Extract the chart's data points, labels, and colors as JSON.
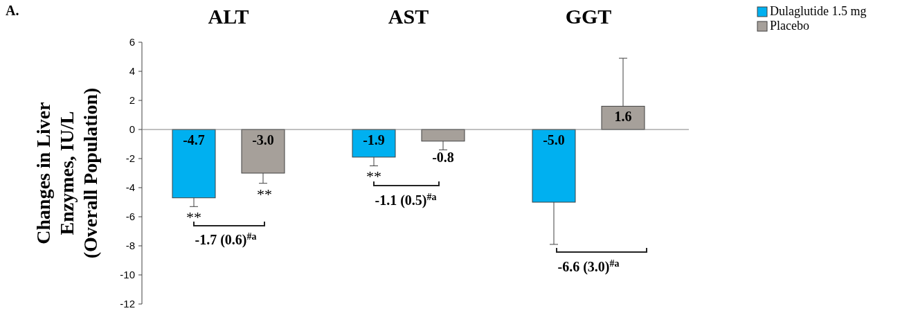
{
  "chart_data": {
    "type": "bar",
    "categories": [
      "ALT",
      "AST",
      "GGT"
    ],
    "ylabel": "Changes in Liver\nEnzymes, IU/L\n(Overall Population)",
    "ylim": [
      -12,
      6
    ],
    "yticks": [
      -12,
      -10,
      -8,
      -6,
      -4,
      -2,
      0,
      2,
      4,
      6
    ],
    "grid": false,
    "ref_lines": [
      {
        "axis": "y",
        "value": 0,
        "color": "#808080"
      }
    ],
    "legend": "top right",
    "series": [
      {
        "name": "Dulaglutide 1.5 mg",
        "color": "#00b0f0",
        "values": [
          -4.7,
          -1.9,
          -5.0
        ],
        "value_labels": [
          "-4.7",
          "-1.9",
          "-5.0"
        ],
        "errors": [
          [
            -5.3,
            -4.7
          ],
          [
            -2.5,
            -1.9
          ],
          [
            -7.9,
            -5.0
          ]
        ]
      },
      {
        "name": "Placebo",
        "color": "#a6a09a",
        "values": [
          -3.0,
          -0.8,
          1.6
        ],
        "value_labels": [
          "-3.0",
          "-0.8",
          "1.6"
        ],
        "errors": [
          [
            -3.7,
            -3.0
          ],
          [
            -1.4,
            -0.8
          ],
          [
            1.6,
            4.9
          ]
        ]
      }
    ],
    "annotations": [
      "A.",
      "**",
      "**",
      "**",
      "-1.7 (0.6)$^{#a}$",
      "-1.1 (0.5)$^{#a}$",
      "-6.6 (3.0)$^{#a}$"
    ]
  }
}
